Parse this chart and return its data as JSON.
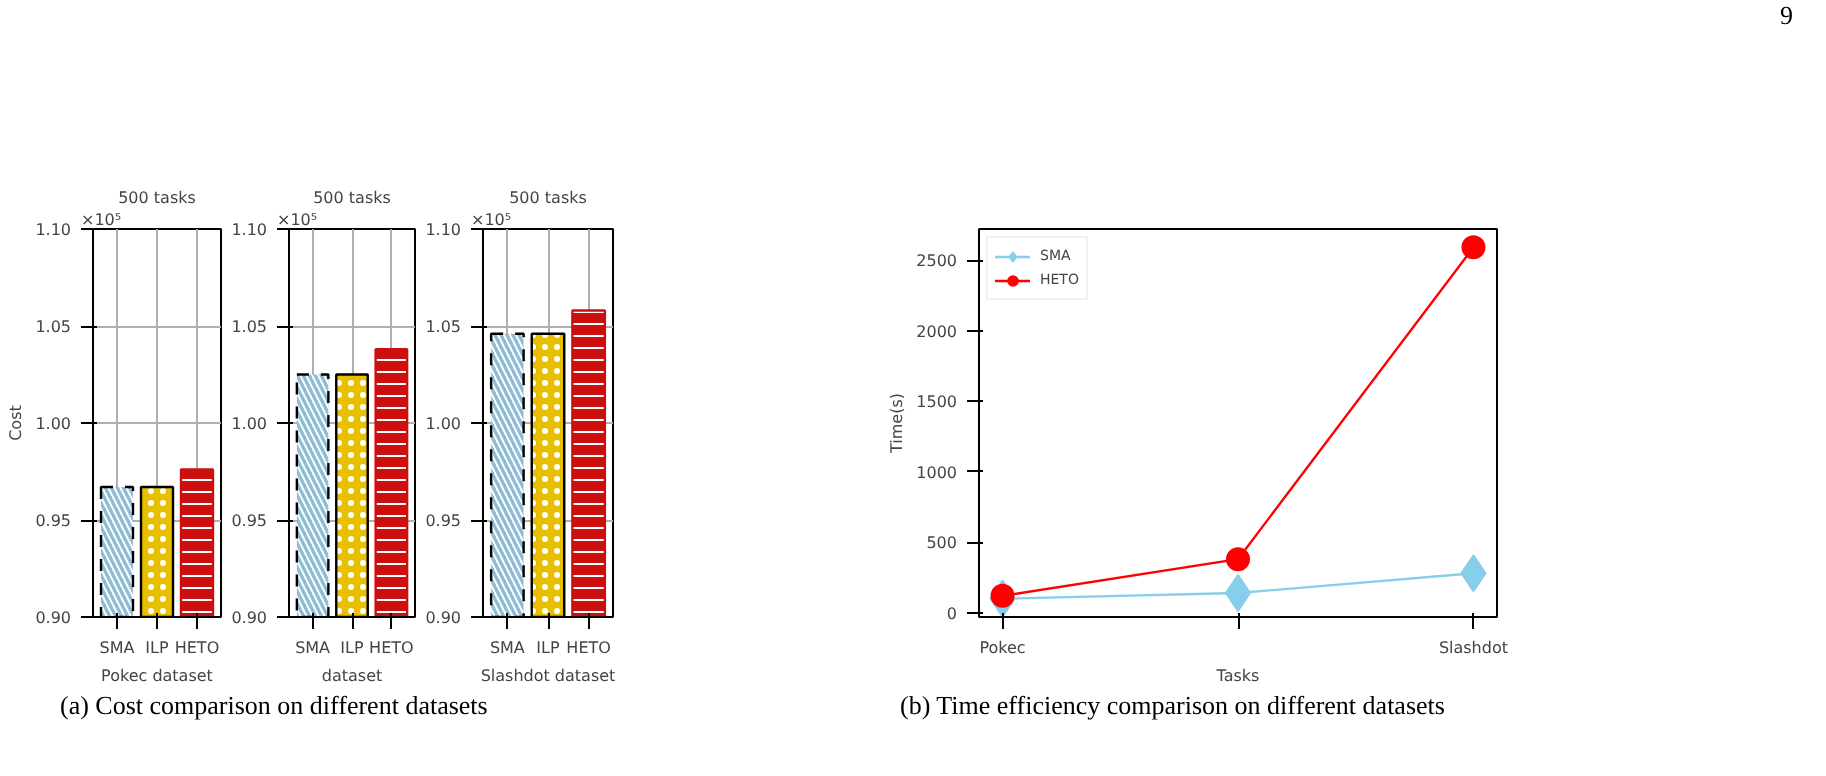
{
  "chart_data": [
    {
      "type": "bar",
      "title": "500 tasks",
      "xlabel": "Pokec dataset",
      "ylabel": "Cost",
      "categories": [
        "SMA",
        "ILP",
        "HETO"
      ],
      "values": [
        0.967,
        0.967,
        0.976
      ],
      "colors": [
        "#8fbcd4",
        "#e8c000",
        "#cc1010"
      ],
      "ylim": [
        0.9,
        1.1
      ],
      "yticks": [
        {
          "value": 0.9,
          "label": "0.90"
        },
        {
          "value": 0.95,
          "label": "0.95"
        },
        {
          "value": 1.0,
          "label": "1.00"
        },
        {
          "value": 1.05,
          "label": "1.05"
        },
        {
          "value": 1.1,
          "label": "1.10"
        }
      ],
      "grid": true,
      "annotations": [
        "×10⁵"
      ]
    },
    {
      "type": "bar",
      "title": "500 tasks",
      "xlabel": "dataset",
      "categories": [
        "SMA",
        "ILP",
        "HETO"
      ],
      "values": [
        1.025,
        1.025,
        1.038
      ],
      "colors": [
        "#8fbcd4",
        "#e8c000",
        "#cc1010"
      ],
      "ylim": [
        0.9,
        1.1
      ],
      "yticks": [
        {
          "value": 0.9,
          "label": "0.90"
        },
        {
          "value": 0.95,
          "label": "0.95"
        },
        {
          "value": 1.0,
          "label": "1.00"
        },
        {
          "value": 1.05,
          "label": "1.05"
        },
        {
          "value": 1.1,
          "label": "1.10"
        }
      ],
      "grid": true,
      "annotations": [
        "×10⁵"
      ]
    },
    {
      "type": "bar",
      "title": "500 tasks",
      "xlabel": "Slashdot dataset",
      "categories": [
        "SMA",
        "ILP",
        "HETO"
      ],
      "values": [
        1.046,
        1.046,
        1.058
      ],
      "colors": [
        "#8fbcd4",
        "#e8c000",
        "#cc1010"
      ],
      "ylim": [
        0.9,
        1.1
      ],
      "yticks": [
        {
          "value": 0.9,
          "label": "0.90"
        },
        {
          "value": 0.95,
          "label": "0.95"
        },
        {
          "value": 1.0,
          "label": "1.00"
        },
        {
          "value": 1.05,
          "label": "1.05"
        },
        {
          "value": 1.1,
          "label": "1.10"
        }
      ],
      "grid": true,
      "annotations": [
        "×10⁵"
      ]
    },
    {
      "type": "line",
      "xlabel": "Tasks",
      "ylabel": "Time(s)",
      "categories": [
        "Pokec",
        null,
        "Slashdot"
      ],
      "ylim": [
        -30,
        2720
      ],
      "yticks": [
        0,
        500,
        1000,
        1500,
        2000,
        2500
      ],
      "grid": false,
      "legend": "top left",
      "series": [
        {
          "name": "SMA",
          "color": "#87ceeb",
          "marker": "diamond",
          "values": [
            100,
            140,
            280
          ]
        },
        {
          "name": "HETO",
          "color": "#ff0000",
          "marker": "circle",
          "values": [
            120,
            380,
            2590
          ]
        }
      ],
      "annotations": [
        "(a) Cost comparison on different datasets",
        "(b) Time efficiency comparison on different datasets",
        "9"
      ]
    }
  ]
}
